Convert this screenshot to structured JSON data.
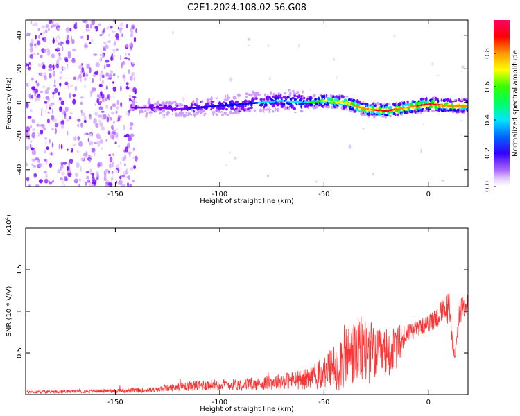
{
  "title": "C2E1.2024.108.02.56.G08",
  "chart_data": [
    {
      "type": "heatmap",
      "xlabel": "Height of straight line (km)",
      "ylabel": "Frequency (Hz)",
      "xlim": [
        -193,
        19
      ],
      "ylim": [
        -50,
        49
      ],
      "x_ticks": [
        -150,
        -100,
        -50,
        0
      ],
      "y_ticks": [
        -40,
        -20,
        0,
        20,
        40
      ],
      "colorbar": {
        "label": "Normalized spectral amplitude",
        "range": [
          0,
          1
        ],
        "ticks": [
          0.0,
          0.2,
          0.4,
          0.6,
          0.8
        ],
        "colors": [
          "#ffffff",
          "#cc99ff",
          "#7700ff",
          "#0000ff",
          "#00e6ff",
          "#00ff00",
          "#ffff00",
          "#ff8800",
          "#ff0000",
          "#ff0066"
        ]
      },
      "ridge": {
        "x": [
          -142,
          -130,
          -120,
          -110,
          -100,
          -90,
          -80,
          -70,
          -60,
          -50,
          -40,
          -30,
          -20,
          -10,
          0,
          10,
          19
        ],
        "frequency": [
          -3,
          -3,
          -4,
          -3,
          -2,
          -1,
          0,
          1,
          0,
          1,
          0,
          -4,
          -5,
          -3,
          -1,
          -2,
          -2
        ],
        "amplitude": [
          0.25,
          0.3,
          0.32,
          0.35,
          0.38,
          0.42,
          0.45,
          0.45,
          0.5,
          0.7,
          0.75,
          0.88,
          0.9,
          0.88,
          0.9,
          0.88,
          0.85
        ]
      },
      "noise_region": {
        "x_range": [
          -193,
          -140
        ]
      }
    },
    {
      "type": "line",
      "xlabel": "Height of straight line (km)",
      "ylabel": "SNR (10 * V/V)",
      "yscale_label": "(x10",
      "yscale_exp": "4",
      "yscale_close": ")",
      "xlim": [
        -193,
        19
      ],
      "ylim": [
        0,
        2.0
      ],
      "x_ticks": [
        -150,
        -100,
        -50,
        0
      ],
      "y_ticks": [
        0.5,
        1.0,
        1.5
      ],
      "series": [
        {
          "color": "#ff3333",
          "x": [
            -193,
            -160,
            -140,
            -130,
            -120,
            -110,
            -100,
            -90,
            -80,
            -70,
            -60,
            -50,
            -45,
            -40,
            -35,
            -30,
            -25,
            -20,
            -15,
            -10,
            -5,
            0,
            5,
            10,
            12,
            13,
            15,
            19
          ],
          "mean": [
            0.03,
            0.04,
            0.05,
            0.06,
            0.09,
            0.11,
            0.12,
            0.12,
            0.13,
            0.16,
            0.18,
            0.25,
            0.32,
            0.45,
            0.5,
            0.55,
            0.48,
            0.5,
            0.55,
            0.75,
            0.8,
            0.85,
            0.95,
            1.05,
            0.55,
            0.45,
            1.0,
            1.1
          ],
          "amp": [
            0.02,
            0.02,
            0.03,
            0.03,
            0.05,
            0.07,
            0.07,
            0.07,
            0.08,
            0.1,
            0.12,
            0.2,
            0.3,
            0.4,
            0.4,
            0.45,
            0.3,
            0.3,
            0.25,
            0.12,
            0.1,
            0.1,
            0.15,
            0.2,
            0.1,
            0.1,
            0.15,
            0.12
          ]
        }
      ]
    }
  ]
}
